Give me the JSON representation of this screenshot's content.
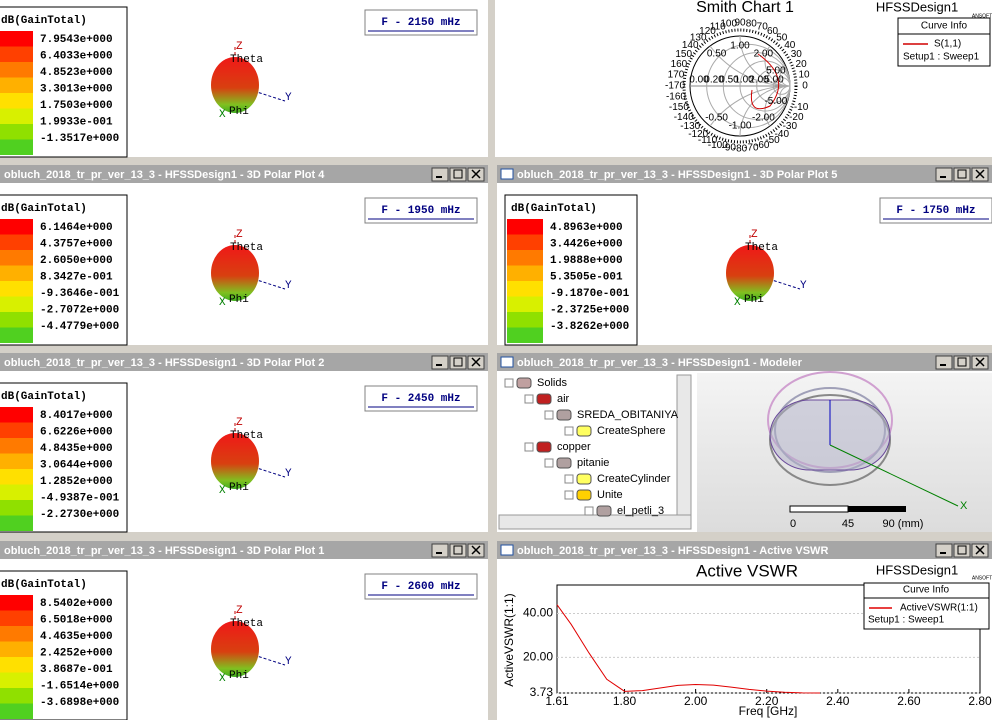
{
  "polar_plots": [
    {
      "legend_title": "dB(GainTotal)",
      "legend_values": [
        "7.9543e+000",
        "6.4033e+000",
        "4.8523e+000",
        "3.3013e+000",
        "1.7503e+000",
        "1.9933e-001",
        "-1.3517e+000"
      ],
      "frequency": "F - 2150 mHz",
      "axis_labels": [
        "Z",
        "Theta",
        "Phi",
        "Y",
        "X"
      ]
    },
    {
      "window_title": "obluch_2018_tr_pr_ver_13_3 - HFSSDesign1 - 3D Polar Plot 4",
      "legend_title": "dB(GainTotal)",
      "legend_values": [
        "6.1464e+000",
        "4.3757e+000",
        "2.6050e+000",
        "8.3427e-001",
        "-9.3646e-001",
        "-2.7072e+000",
        "-4.4779e+000"
      ],
      "frequency": "F - 1950 mHz",
      "axis_labels": [
        "Z",
        "Theta",
        "Phi",
        "Y",
        "X"
      ]
    },
    {
      "window_title": "obluch_2018_tr_pr_ver_13_3 - HFSSDesign1 - 3D Polar Plot 5",
      "legend_title": "dB(GainTotal)",
      "legend_values": [
        "4.8963e+000",
        "3.4426e+000",
        "1.9888e+000",
        "5.3505e-001",
        "-9.1870e-001",
        "-2.3725e+000",
        "-3.8262e+000"
      ],
      "frequency": "F - 1750 mHz",
      "axis_labels": [
        "Z",
        "Theta",
        "Phi",
        "Y",
        "X"
      ]
    },
    {
      "window_title": "obluch_2018_tr_pr_ver_13_3 - HFSSDesign1 - 3D Polar Plot 2",
      "legend_title": "dB(GainTotal)",
      "legend_values": [
        "8.4017e+000",
        "6.6226e+000",
        "4.8435e+000",
        "3.0644e+000",
        "1.2852e+000",
        "-4.9387e-001",
        "-2.2730e+000"
      ],
      "frequency": "F - 2450 mHz",
      "axis_labels": [
        "Z",
        "Theta",
        "Phi",
        "Y",
        "X"
      ]
    },
    {
      "window_title": "obluch_2018_tr_pr_ver_13_3 - HFSSDesign1 - 3D Polar Plot 1",
      "legend_title": "dB(GainTotal)",
      "legend_values": [
        "8.5402e+000",
        "6.5018e+000",
        "4.4635e+000",
        "2.4252e+000",
        "3.8687e-001",
        "-1.6514e+000",
        "-3.6898e+000"
      ],
      "frequency": "F - 2600 mHz",
      "axis_labels": [
        "Z",
        "Theta",
        "Phi",
        "Y",
        "X"
      ]
    }
  ],
  "smith_chart": {
    "title": "Smith Chart 1",
    "design": "HFSSDesign1",
    "logo": "ANSOFT",
    "curve_info_title": "Curve Info",
    "curve": "S(1,1)",
    "setup": "Setup1 : Sweep1",
    "angle_labels": [
      "0",
      "10",
      "20",
      "30",
      "40",
      "50",
      "60",
      "70",
      "80",
      "90",
      "100",
      "110",
      "120",
      "130",
      "140",
      "150",
      "160",
      "170",
      "-170",
      "-160",
      "-150",
      "-140",
      "-130",
      "-120",
      "-110",
      "-100",
      "-90",
      "-80",
      "-70",
      "-60",
      "-50",
      "-40",
      "-30",
      "-20",
      "-10"
    ],
    "resistance_labels": [
      "0.00",
      "0.20",
      "0.50",
      "1.00",
      "2.00",
      "5.00"
    ],
    "reactance_labels": [
      "0.50",
      "1.00",
      "2.00",
      "5.00",
      "-0.50",
      "-1.00",
      "-2.00",
      "-5.00"
    ]
  },
  "modeler": {
    "window_title": "obluch_2018_tr_pr_ver_13_3 - HFSSDesign1 - Modeler",
    "tree": [
      "Solids",
      "air",
      "SREDA_OBITANIYA",
      "CreateSphere",
      "copper",
      "pitanie",
      "CreateCylinder",
      "Unite",
      "el_petli_3"
    ],
    "scale_labels": [
      "0",
      "45",
      "90 (mm)"
    ],
    "axis_label": "X"
  },
  "vswr": {
    "window_title": "obluch_2018_tr_pr_ver_13_3 - HFSSDesign1 - Active VSWR",
    "design": "HFSSDesign1",
    "logo": "ANSOFT",
    "curve_info_title": "Curve Info",
    "setup": "Setup1 : Sweep1"
  },
  "chart_data": {
    "type": "line",
    "title": "Active VSWR",
    "x_label": "Freq [GHz]",
    "y_label": "ActiveVSWR(1:1)",
    "x": [
      1.61,
      1.65,
      1.7,
      1.75,
      1.8,
      1.85,
      1.9,
      1.95,
      2.0,
      2.05,
      2.1,
      2.15,
      2.2,
      2.25,
      2.3,
      2.35
    ],
    "series": [
      {
        "name": "ActiveVSWR(1:1)",
        "color": "#e00000",
        "values": [
          44,
          35,
          22,
          10,
          4.5,
          4.8,
          6,
          7.2,
          7.6,
          7.3,
          6.4,
          5.4,
          4.6,
          4.1,
          3.8,
          3.73
        ]
      }
    ],
    "xlim": [
      1.61,
      2.8
    ],
    "ylim": [
      3.73,
      53
    ],
    "xticks": [
      1.61,
      {
        "value": 1.8,
        "label": "1.80"
      },
      {
        "value": 2,
        "label": "2.00"
      },
      {
        "value": 2.2,
        "label": "2.20"
      },
      {
        "value": 2.4,
        "label": "2.40"
      },
      {
        "value": 2.6,
        "label": "2.60"
      },
      {
        "value": 2.8,
        "label": "2.80"
      }
    ],
    "yticks": [
      3.73,
      {
        "value": 20,
        "label": "20.00"
      },
      {
        "value": 40,
        "label": "40.00"
      }
    ],
    "grid": true
  }
}
